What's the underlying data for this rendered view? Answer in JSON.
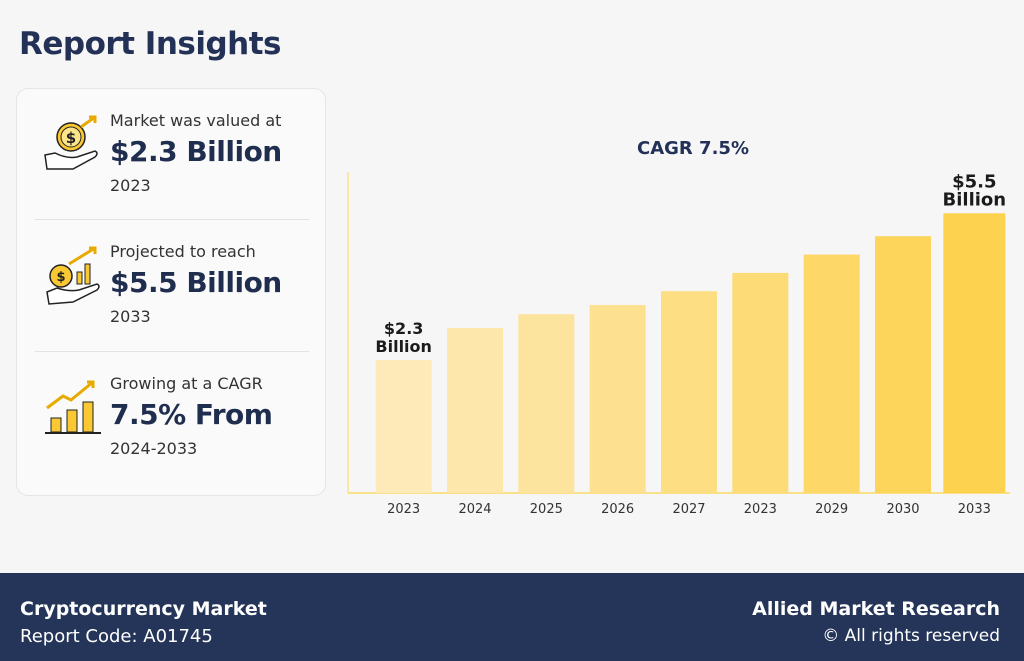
{
  "header": {
    "title": "Report Insights"
  },
  "insights": [
    {
      "icon": "hand-coin-icon",
      "label": "Market was valued at",
      "value": "$2.3 Billion",
      "sub": "2023"
    },
    {
      "icon": "hand-coin-chart-icon",
      "label": "Projected to reach",
      "value": "$5.5 Billion",
      "sub": "2033"
    },
    {
      "icon": "growth-chart-icon",
      "label": "Growing at a CAGR",
      "value": "7.5% From",
      "sub": "2024-2033"
    }
  ],
  "chart_data": {
    "type": "bar",
    "title": "CAGR 7.5%",
    "categories": [
      "2023",
      "2024",
      "2025",
      "2026",
      "2027",
      "2023",
      "2029",
      "2030",
      "2033"
    ],
    "values": [
      2.3,
      3.0,
      3.3,
      3.5,
      3.8,
      4.2,
      4.6,
      5.0,
      5.5
    ],
    "unit": "Billion USD",
    "ylim": [
      -0.6,
      6.4
    ],
    "grid": false,
    "annotations": [
      {
        "index": 0,
        "line1": "$2.3",
        "line2": "Billion"
      },
      {
        "index": 8,
        "line1": "$5.5",
        "line2": "Billion"
      }
    ],
    "colors": {
      "start": "#fdeab8",
      "end": "#fdd24e",
      "axis": "#fbe08a"
    }
  },
  "footer": {
    "market": "Cryptocurrency Market",
    "code": "Report Code: A01745",
    "brand": "Allied Market Research",
    "rights": "© All rights reserved"
  }
}
